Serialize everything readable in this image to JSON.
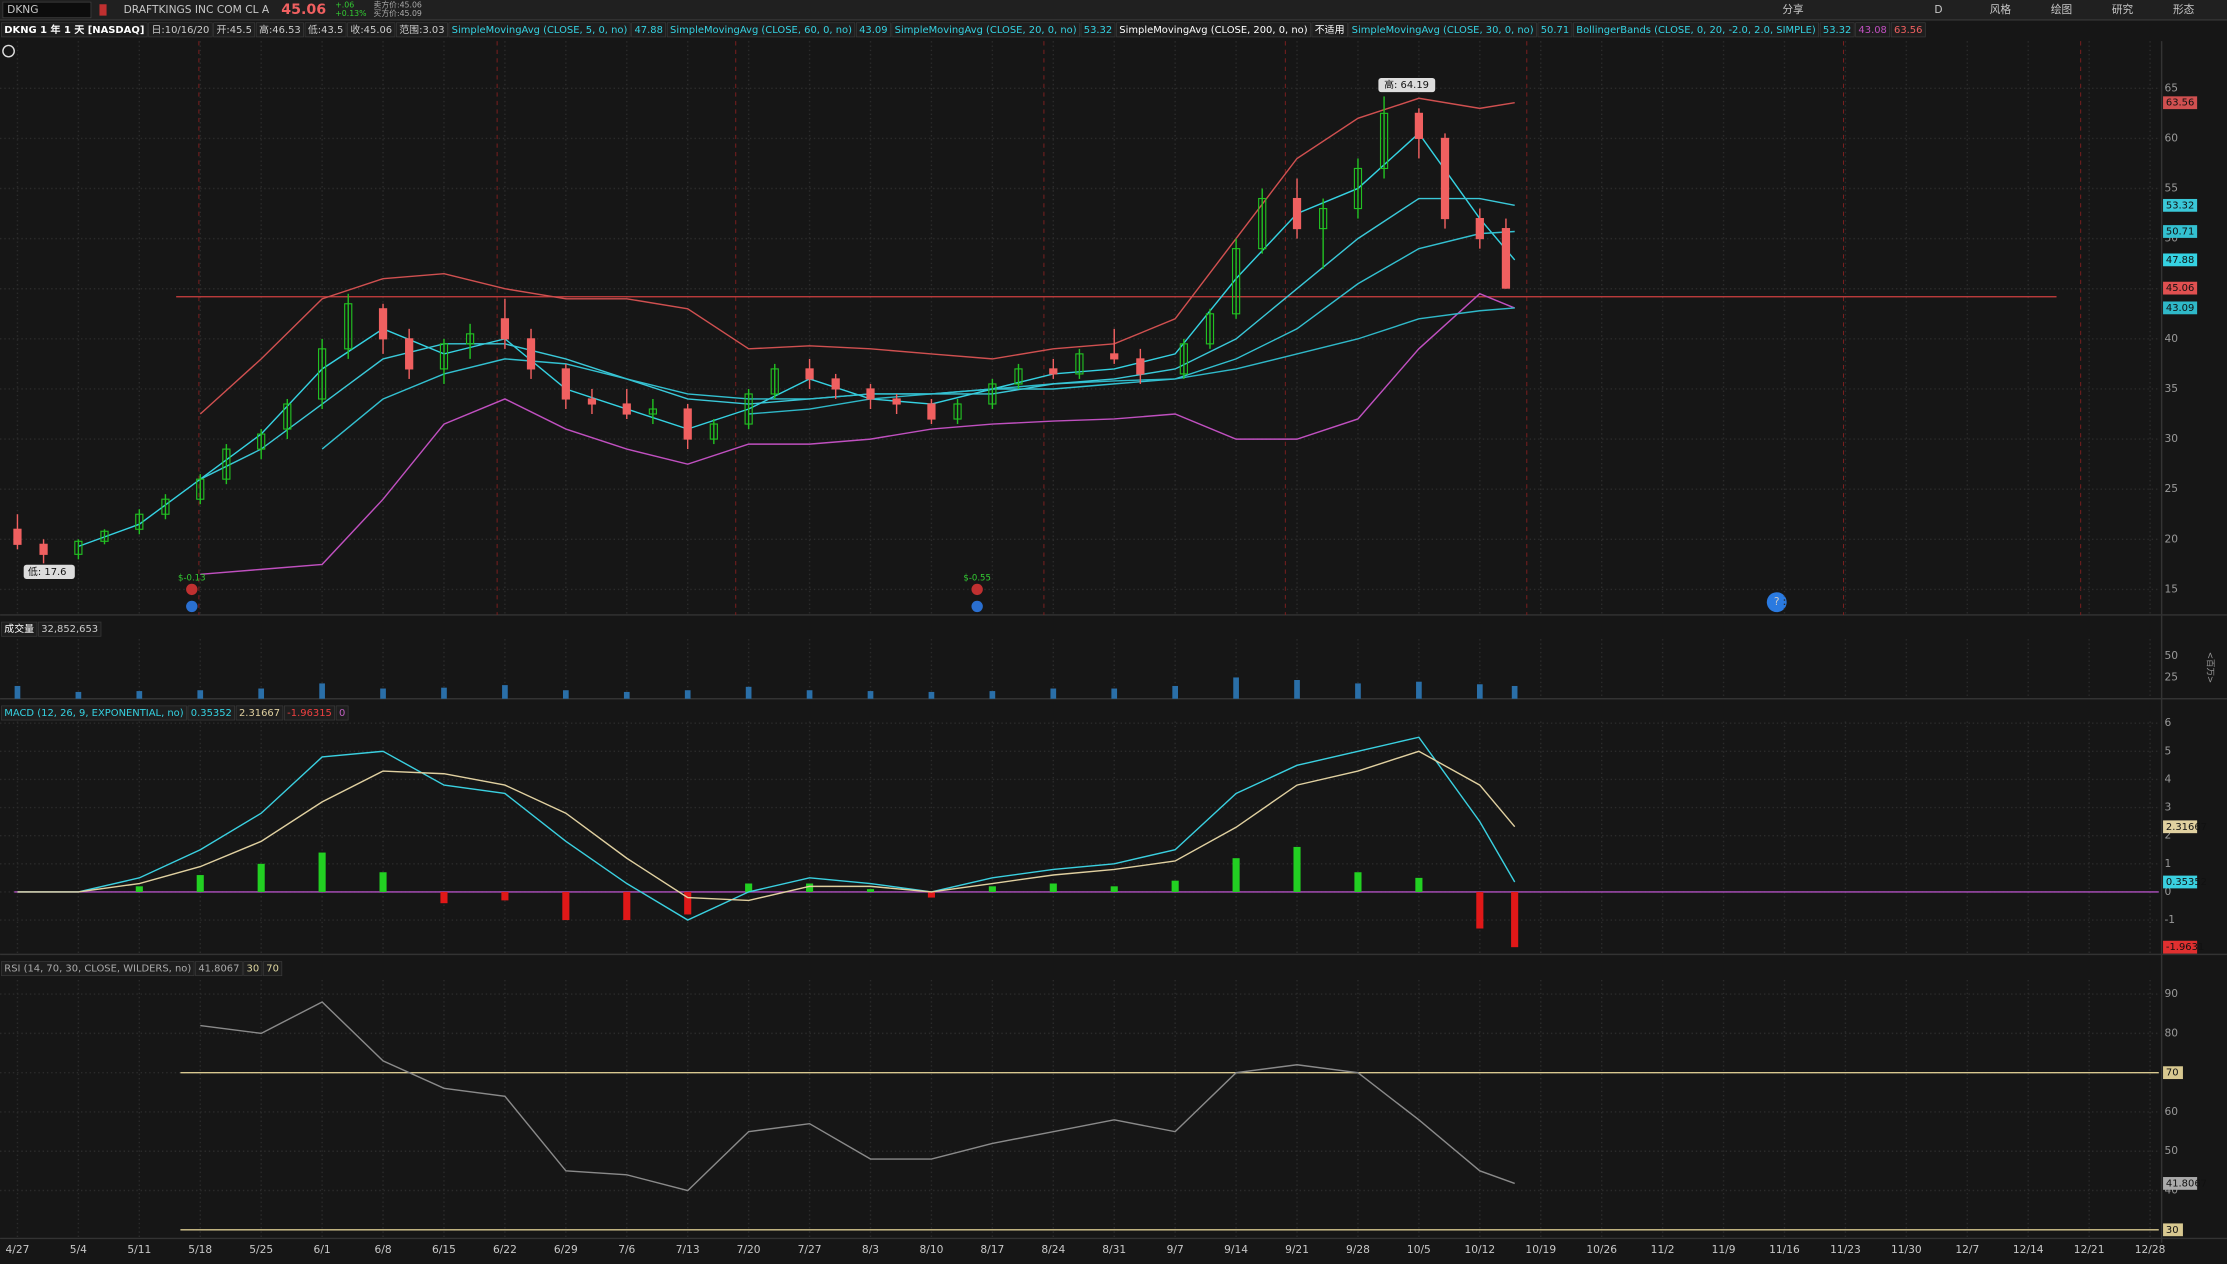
{
  "toolbar": {
    "symbol": "DKNG",
    "name": "DRAFTKINGS INC COM CL A",
    "change": "+.06",
    "change_pct": "+0.13%",
    "ask": "卖方价:45.06",
    "bid": "买方价:45.09",
    "aggregation": "D",
    "buttons": [
      "分享",
      "风格",
      "绘图",
      "研究",
      "形态"
    ]
  },
  "header": {
    "title": "DKNG 1 年 1 天 [NASDAQ]",
    "date": "日:10/16/20",
    "open": "开:45.5",
    "high": "高:46.53",
    "low": "低:43.5",
    "close": "收:45.06",
    "range": "范围:3.03"
  },
  "x_axis": {
    "xlim": [
      "4/25",
      "12/29"
    ],
    "ticks": [
      "4/27",
      "5/4",
      "5/11",
      "5/18",
      "5/25",
      "6/1",
      "6/8",
      "6/15",
      "6/22",
      "6/29",
      "7/6",
      "7/13",
      "7/20",
      "7/27",
      "8/3",
      "8/10",
      "8/17",
      "8/24",
      "8/31",
      "9/7",
      "9/14",
      "9/21",
      "9/28",
      "10/5",
      "10/12",
      "10/19",
      "10/26",
      "11/2",
      "11/9",
      "11/16",
      "11/23",
      "11/30",
      "12/7",
      "12/14",
      "12/21",
      "12/28"
    ]
  },
  "chart_data": [
    {
      "type": "candlestick",
      "ylim": [
        12.45,
        69.7
      ],
      "yticks": [
        15,
        20,
        25,
        30,
        35,
        40,
        45,
        50,
        55,
        60,
        65
      ],
      "grid": true,
      "price_line": 44.2,
      "price_line_color": "#d04040",
      "candles": {
        "up_color": "#22c022",
        "down_color": "#f06060",
        "x": [
          "4/27",
          "4/30",
          "5/4",
          "5/7",
          "5/11",
          "5/14",
          "5/18",
          "5/21",
          "5/25",
          "5/28",
          "6/1",
          "6/4",
          "6/8",
          "6/11",
          "6/15",
          "6/18",
          "6/22",
          "6/25",
          "6/29",
          "7/2",
          "7/6",
          "7/9",
          "7/13",
          "7/16",
          "7/20",
          "7/23",
          "7/27",
          "7/30",
          "8/3",
          "8/6",
          "8/10",
          "8/13",
          "8/17",
          "8/20",
          "8/24",
          "8/27",
          "8/31",
          "9/3",
          "9/8",
          "9/11",
          "9/14",
          "9/17",
          "9/21",
          "9/24",
          "9/28",
          "10/1",
          "10/5",
          "10/8",
          "10/12",
          "10/15"
        ],
        "open": [
          21,
          19.5,
          18.5,
          19.8,
          21,
          22.5,
          24,
          26,
          29,
          31,
          34,
          39,
          43,
          40,
          37,
          39.5,
          42,
          40,
          37,
          34,
          33.5,
          32.5,
          33,
          30,
          31.5,
          34.5,
          37,
          36,
          35,
          34,
          33.5,
          32,
          33.5,
          35.5,
          37,
          36.5,
          38.5,
          38,
          36.5,
          39.5,
          42.5,
          49,
          54,
          51,
          53,
          57,
          62.5,
          60,
          52,
          51
        ],
        "high": [
          22.5,
          20,
          20,
          21,
          23,
          24.5,
          26.5,
          29.5,
          31,
          34,
          40,
          44.5,
          43.5,
          41,
          40,
          41.5,
          44,
          41,
          37.5,
          35,
          35,
          34,
          33.5,
          32,
          35,
          37.5,
          38,
          36.5,
          35.5,
          34.5,
          34,
          34,
          36,
          37.5,
          38,
          39,
          41,
          39,
          40,
          43,
          50,
          55,
          56,
          54,
          58,
          64.19,
          63,
          60.5,
          53,
          52
        ],
        "low": [
          19,
          17.6,
          18,
          19.5,
          20.5,
          22,
          23.5,
          25.5,
          28,
          30,
          33,
          38,
          38.5,
          36,
          35.5,
          38,
          39,
          36,
          33,
          32.5,
          32,
          31.5,
          29,
          29.5,
          31,
          34,
          35,
          34,
          33,
          32.5,
          31.5,
          31.5,
          33,
          35,
          36,
          36,
          37.5,
          35.5,
          36,
          39,
          42,
          48.5,
          50,
          47,
          52,
          56,
          58,
          51,
          49,
          45
        ],
        "close": [
          19.5,
          18.5,
          19.8,
          20.8,
          22.5,
          24,
          26,
          29,
          30.5,
          33.5,
          39,
          43.5,
          40,
          37,
          39.5,
          40.5,
          40,
          37,
          34,
          33.5,
          32.5,
          33,
          30,
          31.5,
          34.5,
          37,
          36,
          35,
          34,
          33.5,
          32,
          33.5,
          35.5,
          37,
          36.5,
          38.5,
          38,
          36.5,
          39.5,
          42.5,
          49,
          54,
          51,
          53,
          57,
          62.5,
          60,
          52,
          50,
          45.06
        ]
      },
      "high_label": "高: 64.19",
      "low_label": "低: 17.6",
      "events": [
        "$-0.13",
        "$-0.55"
      ],
      "x": [
        "4/27",
        "5/4",
        "5/11",
        "5/18",
        "5/25",
        "6/1",
        "6/8",
        "6/15",
        "6/22",
        "6/29",
        "7/6",
        "7/13",
        "7/20",
        "7/27",
        "8/3",
        "8/10",
        "8/17",
        "8/24",
        "8/31",
        "9/7",
        "9/14",
        "9/21",
        "9/28",
        "10/5",
        "10/12",
        "10/16"
      ],
      "series": [
        {
          "name": "SimpleMovingAvg (CLOSE, 5, 0, no)",
          "color": "#35d2e2",
          "values": [
            null,
            19.3,
            21.5,
            26,
            30.5,
            37,
            41,
            38.5,
            40,
            35,
            33,
            31,
            33,
            36,
            34,
            33.5,
            35,
            36.5,
            37,
            38.5,
            46,
            52.5,
            55,
            60.5,
            52,
            47.88
          ]
        },
        {
          "name": "SimpleMovingAvg (CLOSE, 60, 0, no)",
          "color": "#2fb8c8",
          "values": [
            null,
            null,
            null,
            null,
            null,
            null,
            null,
            null,
            null,
            null,
            null,
            null,
            32.5,
            33,
            34,
            34.5,
            35,
            35.5,
            35.8,
            36,
            37,
            38.5,
            40,
            42,
            42.8,
            43.09
          ]
        },
        {
          "name": "SimpleMovingAvg (CLOSE, 20, 0, no)",
          "color": "#3ac8d8",
          "values": [
            null,
            null,
            null,
            26,
            29,
            33.5,
            38,
            39.5,
            39.5,
            38,
            36,
            34,
            33.5,
            34,
            34.5,
            34.5,
            34.5,
            35.5,
            36,
            37,
            40,
            45,
            50,
            54,
            54,
            53.32
          ]
        },
        {
          "name": "SimpleMovingAvg (CLOSE, 30, 0, no)",
          "color": "#33c0d0",
          "values": [
            null,
            null,
            null,
            null,
            null,
            29,
            34,
            36.5,
            38,
            37.5,
            36,
            34.5,
            34,
            34,
            34.5,
            34.5,
            35,
            35,
            35.5,
            36,
            38,
            41,
            45.5,
            49,
            50.5,
            50.71
          ]
        }
      ],
      "na_series": {
        "name": "SimpleMovingAvg (CLOSE, 200, 0, no)",
        "value_label": "不适用"
      },
      "bollinger": {
        "name": "BollingerBands (CLOSE, 0, 20, -2.0, 2.0, SIMPLE)",
        "upper_color": "#d05050",
        "lower_color": "#c050c0",
        "upper": [
          null,
          null,
          null,
          32.5,
          38,
          44,
          46,
          46.5,
          45,
          44,
          44,
          43,
          39,
          39.3,
          39,
          38.5,
          38,
          39,
          39.5,
          42,
          50,
          58,
          62,
          64,
          63,
          63.56
        ],
        "lower": [
          null,
          null,
          null,
          16.5,
          17,
          17.5,
          24,
          31.5,
          34,
          31,
          29,
          27.5,
          29.5,
          29.5,
          30,
          31,
          31.5,
          31.8,
          32,
          32.5,
          30,
          30,
          32,
          39,
          44.5,
          43.08
        ]
      }
    },
    {
      "type": "bar",
      "title": "成交量",
      "current": "32,852,653",
      "unit": "<百万>",
      "ylim": [
        0,
        70
      ],
      "yticks": [
        25,
        50
      ],
      "color": "#2a6fa8",
      "x": [
        "4/27",
        "5/4",
        "5/11",
        "5/18",
        "5/25",
        "6/1",
        "6/8",
        "6/15",
        "6/22",
        "6/29",
        "7/6",
        "7/13",
        "7/20",
        "7/27",
        "8/3",
        "8/10",
        "8/17",
        "8/24",
        "8/31",
        "9/7",
        "9/14",
        "9/21",
        "9/28",
        "10/5",
        "10/12",
        "10/16"
      ],
      "values": [
        15,
        8,
        9,
        10,
        12,
        18,
        12,
        13,
        16,
        10,
        8,
        10,
        14,
        10,
        9,
        8,
        9,
        12,
        12,
        15,
        25,
        22,
        18,
        20,
        17,
        15
      ]
    },
    {
      "type": "line",
      "title": "MACD (12, 26, 9, EXPONENTIAL, no)",
      "ylim": [
        -2.22,
        6.06
      ],
      "yticks": [
        -1,
        0,
        1,
        2,
        3,
        4,
        5,
        6
      ],
      "zero_line": 0,
      "zero_color": "#b050c0",
      "x": [
        "4/27",
        "5/4",
        "5/11",
        "5/18",
        "5/25",
        "6/1",
        "6/8",
        "6/15",
        "6/22",
        "6/29",
        "7/6",
        "7/13",
        "7/20",
        "7/27",
        "8/3",
        "8/10",
        "8/17",
        "8/24",
        "8/31",
        "9/7",
        "9/14",
        "9/21",
        "9/28",
        "10/5",
        "10/12",
        "10/16"
      ],
      "series": [
        {
          "color": "#3ad0e0",
          "values": [
            0,
            0,
            0.5,
            1.5,
            2.8,
            4.8,
            5.0,
            3.8,
            3.5,
            1.8,
            0.3,
            -1.0,
            0,
            0.5,
            0.3,
            0,
            0.5,
            0.8,
            1.0,
            1.5,
            3.5,
            4.5,
            5.0,
            5.5,
            2.5,
            0.35352
          ]
        },
        {
          "color": "#e0d0a0",
          "values": [
            0,
            0,
            0.3,
            0.9,
            1.8,
            3.2,
            4.3,
            4.2,
            3.8,
            2.8,
            1.2,
            -0.2,
            -0.3,
            0.2,
            0.2,
            0,
            0.3,
            0.6,
            0.8,
            1.1,
            2.3,
            3.8,
            4.3,
            5.0,
            3.8,
            2.31667
          ]
        }
      ],
      "histogram": {
        "up_color": "#22d022",
        "down_color": "#e01818",
        "axis_label": "-1.9631",
        "values": [
          0,
          0,
          0.2,
          0.6,
          1.0,
          1.4,
          0.7,
          -0.4,
          -0.3,
          -1.0,
          -1.0,
          -0.8,
          0.3,
          0.3,
          0.1,
          -0.2,
          0.2,
          0.3,
          0.2,
          0.4,
          1.2,
          1.6,
          0.7,
          0.5,
          -1.3,
          -1.96315
        ]
      }
    },
    {
      "type": "line",
      "title": "RSI (14, 70, 30, CLOSE, WILDERS, no)",
      "ylim": [
        27.8,
        93.6
      ],
      "yticks": [
        40,
        50,
        60,
        70,
        80,
        90
      ],
      "levels": [
        30,
        70
      ],
      "level_color": "#d8c890",
      "x": [
        "4/27",
        "5/4",
        "5/11",
        "5/18",
        "5/25",
        "6/1",
        "6/8",
        "6/15",
        "6/22",
        "6/29",
        "7/6",
        "7/13",
        "7/20",
        "7/27",
        "8/3",
        "8/10",
        "8/17",
        "8/24",
        "8/31",
        "9/7",
        "9/14",
        "9/21",
        "9/28",
        "10/5",
        "10/12",
        "10/16"
      ],
      "series": [
        {
          "color": "#8a8a8a",
          "values": [
            null,
            null,
            null,
            82,
            80,
            88,
            73,
            66,
            64,
            45,
            44,
            40,
            55,
            57,
            48,
            48,
            52,
            55,
            58,
            55,
            70,
            72,
            70,
            58,
            45,
            41.8067
          ]
        }
      ]
    }
  ]
}
